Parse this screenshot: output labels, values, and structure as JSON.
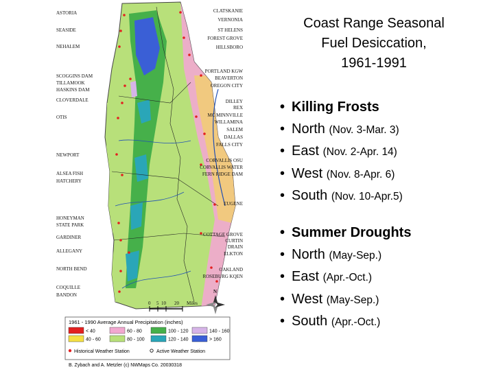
{
  "title_lines": [
    "Coast Range Seasonal",
    "Fuel Desiccation,",
    "1961-1991"
  ],
  "frosts": {
    "heading": "Killing Frosts",
    "items": [
      {
        "dir": "North",
        "dates": "(Nov. 3-Mar. 3)"
      },
      {
        "dir": "East",
        "dates": "(Nov. 2-Apr. 14)"
      },
      {
        "dir": "West",
        "dates": "(Nov. 8-Apr. 6)"
      },
      {
        "dir": "South",
        "dates": "(Nov. 10-Apr.5)"
      }
    ]
  },
  "droughts": {
    "heading": "Summer Droughts",
    "items": [
      {
        "dir": "North",
        "dates": "(May-Sep.)"
      },
      {
        "dir": "East",
        "dates": "(Apr.-Oct.)"
      },
      {
        "dir": "West",
        "dates": "(May-Sep.)"
      },
      {
        "dir": "South",
        "dates": "(Apr.-Oct.)"
      }
    ]
  },
  "map": {
    "left_labels": [
      "ASTORIA",
      "SEASIDE",
      "NEHALEM",
      "SCOGGINS DAM",
      "TILLAMOOK",
      "HASKINS DAM",
      "CLOVERDALE",
      "OTIS",
      "NEWPORT",
      "ALSEA FISH",
      "HATCHERY",
      "HONEYMAN",
      "STATE PARK",
      "GARDINER",
      "ALLEGANY",
      "NORTH BEND",
      "COQUILLE",
      "BANDON"
    ],
    "right_labels": [
      "CLATSKANIE",
      "VERNONIA",
      "ST HELENS",
      "FOREST GROVE",
      "HILLSBORO",
      "PORTLAND KGW",
      "BEAVERTON",
      "OREGON CITY",
      "DILLEY",
      "REX",
      "MC MINNVILLE",
      "WILLAMINA",
      "SALEM",
      "DALLAS",
      "FALLS CITY",
      "CORVALLIS OSU",
      "CORVALLIS WATER",
      "FERN RIDGE DAM",
      "EUGENE",
      "COTTAGE GROVE",
      "CURTIN",
      "DRAIN",
      "ELKTON",
      "OAKLAND",
      "ROSEBURG KQEN"
    ],
    "scale": {
      "ticks": [
        "0",
        "5",
        "10",
        "20"
      ],
      "unit": "Miles"
    },
    "compass": "N",
    "legend": {
      "title": "1961 - 1990 Average Annual Precipitation (inches)",
      "bins": [
        {
          "label": "< 40",
          "color": "#e32020"
        },
        {
          "label": "60 - 80",
          "color": "#f2a8d0"
        },
        {
          "label": "100 - 120",
          "color": "#46b04a"
        },
        {
          "label": "140 - 160",
          "color": "#d6b4e8"
        },
        {
          "label": "40 - 60",
          "color": "#f5e043"
        },
        {
          "label": "80 - 100",
          "color": "#b8e07a"
        },
        {
          "label": "120 - 140",
          "color": "#2aa6b8"
        },
        {
          "label": "> 160",
          "color": "#3a5fd6"
        }
      ],
      "historical": "Historical Weather Station",
      "active": "Active Weather Station"
    },
    "credit": "B. Zybach and A. Metzler (c) NWMaps Co. 20030318"
  }
}
